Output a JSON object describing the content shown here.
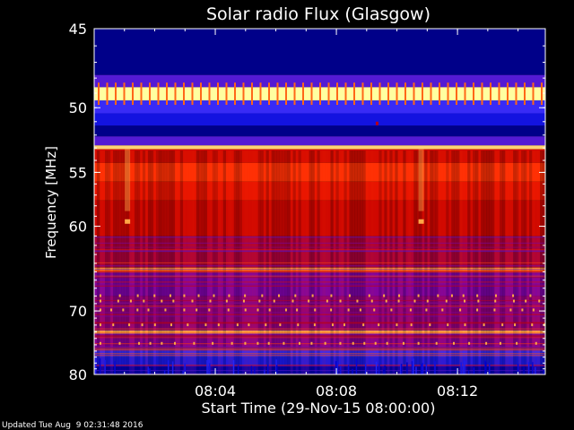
{
  "chart_data": {
    "type": "heatmap",
    "title": "Solar radio Flux (Glasgow)",
    "xlabel": "Start Time (29-Nov-15 08:00:00)",
    "ylabel": "Frequency [MHz]",
    "x_unit": "minutes after 08:00:00",
    "xlim": [
      0,
      14.9
    ],
    "ylim": [
      45,
      80
    ],
    "y_scale": "reciprocal",
    "x_ticks": [
      {
        "value": 4,
        "label": "08:04"
      },
      {
        "value": 8,
        "label": "08:08"
      },
      {
        "value": 12,
        "label": "08:12"
      }
    ],
    "y_ticks": [
      {
        "value": 45,
        "label": "45"
      },
      {
        "value": 50,
        "label": "50"
      },
      {
        "value": 55,
        "label": "55"
      },
      {
        "value": 60,
        "label": "60"
      },
      {
        "value": 70,
        "label": "70"
      },
      {
        "value": 80,
        "label": "80"
      }
    ],
    "frequency_bands": [
      {
        "from": 45.0,
        "to": 47.8,
        "level": 0.08
      },
      {
        "from": 47.8,
        "to": 48.6,
        "level": 0.35
      },
      {
        "from": 48.6,
        "to": 49.5,
        "level": 1.0
      },
      {
        "from": 49.5,
        "to": 50.4,
        "level": 0.3
      },
      {
        "from": 50.4,
        "to": 51.3,
        "level": 0.2
      },
      {
        "from": 51.3,
        "to": 52.1,
        "level": 0.08
      },
      {
        "from": 52.1,
        "to": 52.8,
        "level": 0.35
      },
      {
        "from": 52.8,
        "to": 53.1,
        "level": 0.95
      },
      {
        "from": 53.1,
        "to": 54.2,
        "level": 0.62
      },
      {
        "from": 54.2,
        "to": 55.8,
        "level": 0.74
      },
      {
        "from": 55.8,
        "to": 57.5,
        "level": 0.66
      },
      {
        "from": 57.5,
        "to": 61.0,
        "level": 0.6
      },
      {
        "from": 61.0,
        "to": 64.5,
        "level": 0.52
      },
      {
        "from": 64.5,
        "to": 65.0,
        "level": 0.88
      },
      {
        "from": 65.0,
        "to": 68.0,
        "level": 0.42
      },
      {
        "from": 68.0,
        "to": 72.8,
        "level": 0.46
      },
      {
        "from": 72.8,
        "to": 73.3,
        "level": 0.92
      },
      {
        "from": 73.3,
        "to": 75.5,
        "level": 0.44
      },
      {
        "from": 75.5,
        "to": 77.0,
        "level": 0.3
      },
      {
        "from": 77.0,
        "to": 78.5,
        "level": 0.22
      },
      {
        "from": 78.5,
        "to": 80.0,
        "level": 0.12
      }
    ],
    "time_features": [
      {
        "time": 1.1,
        "level": 0.9
      },
      {
        "time": 10.8,
        "level": 0.9
      }
    ],
    "colors": {
      "background": "#000000",
      "axes": "#ffffff",
      "colormap": [
        "#000033",
        "#0000cc",
        "#3030ff",
        "#8000a0",
        "#c00000",
        "#ff2000",
        "#ff8020",
        "#ffffa0"
      ]
    }
  },
  "footer": {
    "updated": "Updated Tue Aug  9 02:31:48 2016"
  }
}
